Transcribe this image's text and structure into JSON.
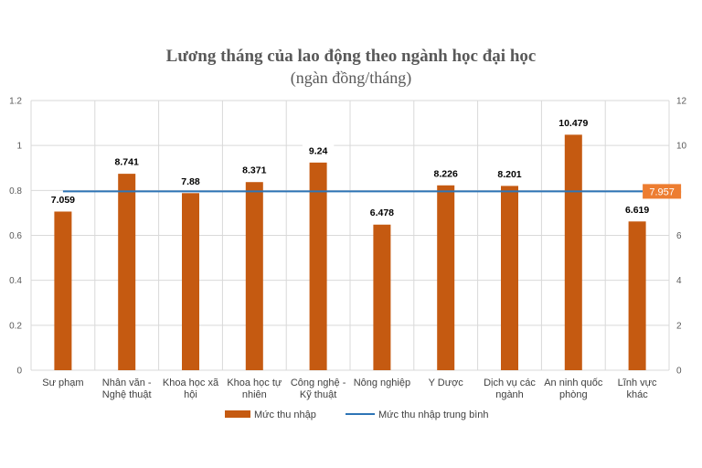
{
  "chart_data": {
    "type": "bar",
    "title": "Lương tháng của lao động theo ngành học đại học",
    "subtitle": "(ngàn đồng/tháng)",
    "categories": [
      [
        "Sư phạm"
      ],
      [
        "Nhân văn -",
        "Nghệ thuật"
      ],
      [
        "Khoa học xã",
        "hội"
      ],
      [
        "Khoa học tự",
        "nhiên"
      ],
      [
        "Công nghệ -",
        "Kỹ thuật"
      ],
      [
        "Nông nghiệp"
      ],
      [
        "Y Dược"
      ],
      [
        "Dịch vụ các",
        "ngành"
      ],
      [
        "An ninh quốc",
        "phòng"
      ],
      [
        "Lĩnh vực",
        "khác"
      ]
    ],
    "series": [
      {
        "name": "Mức thu nhập",
        "type": "bar",
        "axis": "right",
        "color": "#C55A11",
        "values": [
          7.059,
          8.741,
          7.88,
          8.371,
          9.24,
          6.478,
          8.226,
          8.201,
          10.479,
          6.619
        ],
        "labels": [
          "7.059",
          "8.741",
          "7.88",
          "8.371",
          "9.24",
          "6.478",
          "8.226",
          "8.201",
          "10.479",
          "6.619"
        ]
      },
      {
        "name": "Mức thu nhập trung bình",
        "type": "line",
        "axis": "right",
        "color": "#2E75B6",
        "value": 7.957,
        "label": "7.957",
        "label_color": "#ED7D31"
      }
    ],
    "y_left": {
      "ylim": [
        0,
        1.2
      ],
      "ticks": [
        "0",
        "0.2",
        "0.4",
        "0.6",
        "0.8",
        "1",
        "1.2"
      ]
    },
    "y_right": {
      "ylim": [
        0,
        12
      ],
      "ticks": [
        "0",
        "2",
        "4",
        "6",
        "8",
        "10",
        "12"
      ]
    },
    "grid": true,
    "legend": "bottom"
  }
}
